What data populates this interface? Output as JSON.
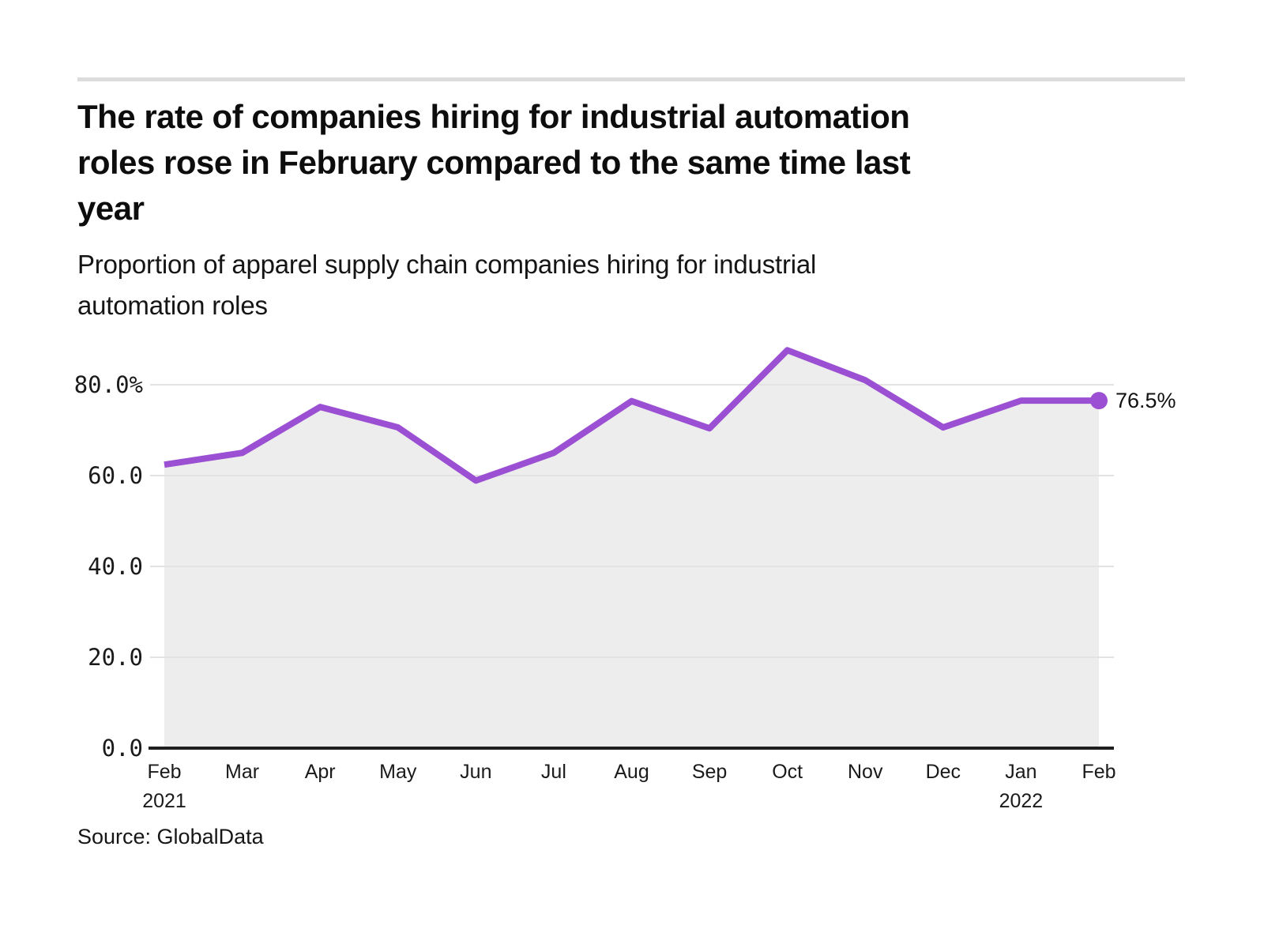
{
  "header": {
    "title_lines": [
      "The rate of companies hiring for industrial automation",
      "roles rose in February compared to the same time last",
      "year"
    ],
    "subtitle_lines": [
      "Proportion of apparel supply chain companies hiring for industrial",
      "automation roles"
    ]
  },
  "footer": {
    "source": "Source: GlobalData"
  },
  "chart_data": {
    "type": "line",
    "title": "The rate of companies hiring for industrial automation roles rose in February compared to the same time last year",
    "subtitle": "Proportion of apparel supply chain companies hiring for industrial automation roles",
    "x": [
      {
        "label": "Feb",
        "year": "2021"
      },
      {
        "label": "Mar"
      },
      {
        "label": "Apr"
      },
      {
        "label": "May"
      },
      {
        "label": "Jun"
      },
      {
        "label": "Jul"
      },
      {
        "label": "Aug"
      },
      {
        "label": "Sep"
      },
      {
        "label": "Oct"
      },
      {
        "label": "Nov"
      },
      {
        "label": "Dec"
      },
      {
        "label": "Jan",
        "year": "2022"
      },
      {
        "label": "Feb"
      }
    ],
    "series": [
      {
        "name": "Proportion of apparel supply chain companies hiring for industrial automation roles",
        "values": [
          62.4,
          65.0,
          75.1,
          70.6,
          58.9,
          65.0,
          76.4,
          70.4,
          87.6,
          81.0,
          70.6,
          76.5,
          76.5
        ]
      }
    ],
    "unit": "%",
    "ylim": [
      0,
      92
    ],
    "yticks": [
      {
        "value": 0,
        "label": "0.0"
      },
      {
        "value": 20,
        "label": "20.0"
      },
      {
        "value": 40,
        "label": "40.0"
      },
      {
        "value": 60,
        "label": "60.0"
      },
      {
        "value": 80,
        "label": "80.0%"
      }
    ],
    "grid": true,
    "legend": "none",
    "end_label": "76.5%",
    "colors": {
      "line": "#9b4fd3",
      "marker": "#9b4fd3",
      "area": "#ededed",
      "grid": "#e3e3e3",
      "axis": "#1f1f1f",
      "tick_text": "#1a1a1a"
    },
    "source": "Source: GlobalData"
  }
}
